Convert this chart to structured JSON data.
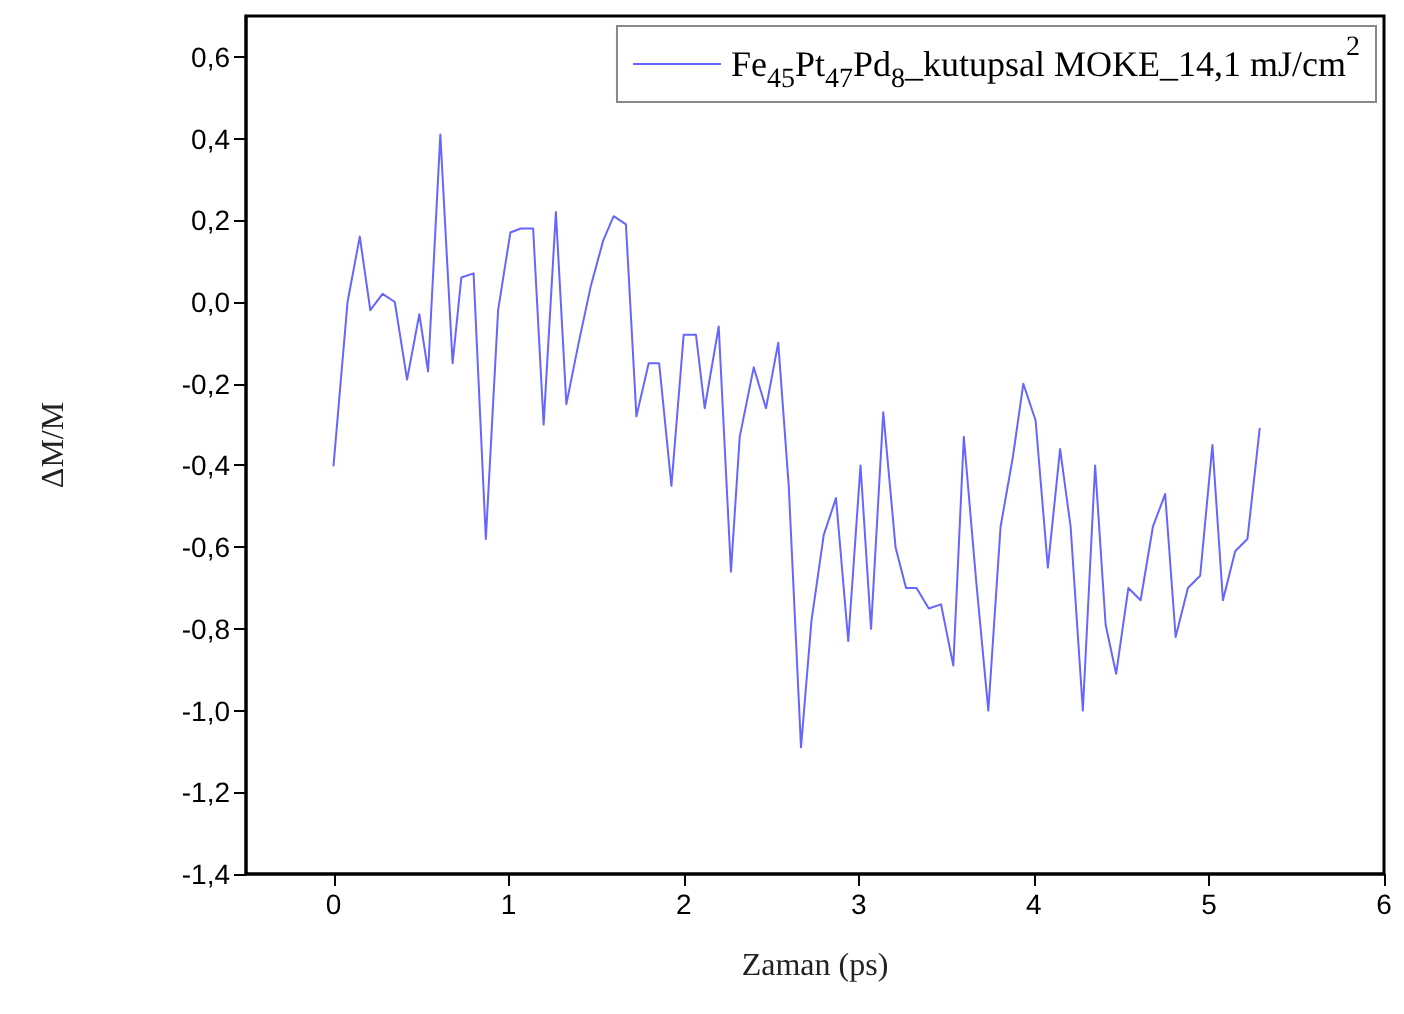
{
  "chart_data": {
    "type": "line",
    "xlabel": "Zaman (ps)",
    "ylabel": "ΔM/M",
    "x": [
      0,
      0.08,
      0.15,
      0.21,
      0.28,
      0.35,
      0.42,
      0.49,
      0.54,
      0.61,
      0.68,
      0.73,
      0.8,
      0.87,
      0.94,
      1.01,
      1.07,
      1.14,
      1.2,
      1.27,
      1.33,
      1.4,
      1.47,
      1.54,
      1.6,
      1.67,
      1.73,
      1.8,
      1.86,
      1.93,
      2.0,
      2.07,
      2.12,
      2.2,
      2.27,
      2.32,
      2.4,
      2.47,
      2.54,
      2.6,
      2.67,
      2.73,
      2.8,
      2.87,
      2.94,
      3.01,
      3.07,
      3.14,
      3.21,
      3.27,
      3.33,
      3.4,
      3.47,
      3.54,
      3.6,
      3.67,
      3.74,
      3.81,
      3.88,
      3.94,
      4.01,
      4.08,
      4.15,
      4.21,
      4.28,
      4.35,
      4.41,
      4.47,
      4.54,
      4.61,
      4.68,
      4.75,
      4.81,
      4.88,
      4.95,
      5.02,
      5.08,
      5.15,
      5.22,
      5.29
    ],
    "series": [
      {
        "name": "Fe$_{45}$Pt$_{47}$Pd$_{8}$_kutupsal MOKE_14,1 mJ/cm$^{2}$",
        "color": "#6666ff",
        "values": [
          -0.4,
          0.0,
          0.16,
          -0.02,
          0.02,
          0.0,
          -0.19,
          -0.03,
          -0.17,
          0.41,
          -0.15,
          0.06,
          0.07,
          -0.58,
          -0.02,
          0.17,
          0.18,
          0.18,
          -0.3,
          0.22,
          -0.25,
          -0.1,
          0.04,
          0.15,
          0.21,
          0.19,
          -0.28,
          -0.15,
          -0.15,
          -0.45,
          -0.08,
          -0.08,
          -0.26,
          -0.06,
          -0.66,
          -0.33,
          -0.16,
          -0.26,
          -0.1,
          -0.45,
          -1.09,
          -0.78,
          -0.57,
          -0.48,
          -0.83,
          -0.4,
          -0.8,
          -0.27,
          -0.6,
          -0.7,
          -0.7,
          -0.75,
          -0.74,
          -0.89,
          -0.33,
          -0.68,
          -1.0,
          -0.55,
          -0.38,
          -0.2,
          -0.29,
          -0.65,
          -0.36,
          -0.55,
          -1.0,
          -0.4,
          -0.79,
          -0.91,
          -0.7,
          -0.73,
          -0.55,
          -0.47,
          -0.82,
          -0.7,
          -0.67,
          -0.35,
          -0.73,
          -0.61,
          -0.58,
          -0.31
        ]
      }
    ],
    "xlim": [
      -0.5,
      6
    ],
    "xticks": [
      0,
      1,
      2,
      3,
      4,
      5,
      6
    ],
    "ylim": [
      -1.4,
      0.7
    ],
    "yticks": [
      {
        "value": -1.4,
        "label": "-1,4"
      },
      {
        "value": -1.2,
        "label": "-1,2"
      },
      {
        "value": -1.0,
        "label": "-1,0"
      },
      {
        "value": -0.8,
        "label": "-0,8"
      },
      {
        "value": -0.6,
        "label": "-0,6"
      },
      {
        "value": -0.4,
        "label": "-0,4"
      },
      {
        "value": -0.2,
        "label": "-0,2"
      },
      {
        "value": 0,
        "label": "0,0"
      },
      {
        "value": 0.2,
        "label": "0,2"
      },
      {
        "value": 0.4,
        "label": "0,4"
      },
      {
        "value": 0.6,
        "label": "0,6"
      }
    ],
    "legend": "top right",
    "grid": false,
    "marker": "none",
    "line_style": "solid"
  }
}
